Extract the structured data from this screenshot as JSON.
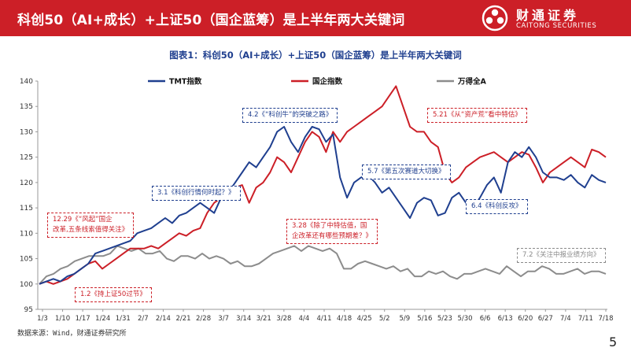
{
  "header": {
    "title": "科创50（AI+成长）+上证50（国企蓝筹）是上半年两大关键词",
    "brand_cn": "财通证券",
    "brand_en": "CAITONG SECURITIES",
    "color": "#cc1f27"
  },
  "figure_title": "图表1：科创50（AI+成长）+上证50（国企蓝筹）是上半年两大关键词",
  "source": "数据来源：Wind，财通证券研究所",
  "page_number": "5",
  "annotations": [
    {
      "text": "4.2《“科创牛”的突破之路》",
      "color": "blue"
    },
    {
      "text": "3.1《科创行情何时起？》",
      "color": "blue"
    },
    {
      "text": "5.7《第五次赛道大切换》",
      "color": "blue"
    },
    {
      "text": "6.4《科创反攻》",
      "color": "blue"
    },
    {
      "text": "12.29《“风起”国企",
      "text2": "改革,五条线索值得关注》",
      "color": "red"
    },
    {
      "text": "3.28《除了中特估值，国",
      "text2": "企改革还有哪些预期差？》",
      "color": "red"
    },
    {
      "text": "5.21《从“资产荒”看中特估》",
      "color": "red"
    },
    {
      "text": "1.2《持上证50过节》",
      "color": "red"
    },
    {
      "text": "7.2《关注中报业绩方向》",
      "color": "gray"
    }
  ],
  "chart_data": {
    "type": "line",
    "title": "图表1：科创50（AI+成长）+上证50（国企蓝筹）是上半年两大关键词",
    "y_ticks": [
      95,
      100,
      105,
      110,
      115,
      120,
      125,
      130,
      135,
      140
    ],
    "ylim": [
      95,
      140
    ],
    "x_ticks": [
      "1/3",
      "1/10",
      "1/17",
      "1/24",
      "1/31",
      "2/7",
      "2/14",
      "2/21",
      "2/28",
      "3/7",
      "3/14",
      "3/21",
      "3/28",
      "4/4",
      "4/11",
      "4/18",
      "4/25",
      "5/2",
      "5/9",
      "5/16",
      "5/23",
      "5/30",
      "6/6",
      "6/13",
      "6/20",
      "6/27",
      "7/4",
      "7/11",
      "7/18"
    ],
    "legend_position": "top",
    "grid": false,
    "series": [
      {
        "name": "TMT指数",
        "color": "#1f3f8f",
        "values": [
          100,
          100.5,
          101,
          100.5,
          101.5,
          102,
          103,
          104,
          106,
          106.5,
          107,
          107.5,
          108,
          108.5,
          110,
          110.5,
          111,
          112,
          113,
          112,
          113.5,
          114,
          115,
          116,
          115,
          114,
          117,
          118,
          120,
          122,
          124,
          123,
          125,
          127,
          130,
          131,
          128,
          126,
          129,
          131,
          130.5,
          128,
          129.5,
          121,
          117,
          120,
          121,
          121.5,
          120,
          118,
          119,
          117,
          115,
          113,
          116,
          117,
          116.5,
          113.5,
          114,
          117,
          118,
          116,
          115,
          117,
          119.5,
          121,
          118,
          124,
          126,
          125,
          127,
          125,
          122,
          121,
          121,
          120.5,
          121.5,
          120,
          119,
          121.5,
          120.5,
          120
        ]
      },
      {
        "name": "国企指数",
        "color": "#cc1f27",
        "values": [
          100,
          100.5,
          100,
          100.5,
          101,
          102,
          103,
          104,
          104.5,
          103,
          104,
          105,
          106,
          107,
          107,
          107,
          107.5,
          107,
          108,
          109,
          110,
          109.5,
          110.5,
          111,
          114,
          116,
          117,
          118,
          119,
          119.5,
          116,
          119,
          120,
          122,
          125,
          124,
          122,
          125,
          128,
          130,
          129,
          126,
          130,
          128,
          130,
          131,
          132,
          133,
          134,
          135,
          137,
          139,
          135,
          131,
          130,
          130,
          128,
          127,
          122,
          120,
          121,
          123,
          124,
          125,
          125.5,
          126,
          125,
          124,
          125,
          126,
          125.5,
          123,
          120,
          122,
          123,
          124,
          125,
          124,
          123,
          126.5,
          126,
          125
        ]
      },
      {
        "name": "万得全A",
        "color": "#8c8c8c",
        "values": [
          100,
          101.5,
          102,
          103,
          103.5,
          104.5,
          105,
          105.5,
          105.5,
          105.5,
          106,
          107.5,
          107,
          106.5,
          107,
          106,
          106,
          106.5,
          105,
          104.5,
          105.5,
          105.5,
          105,
          106,
          105,
          105.5,
          105,
          104,
          104.5,
          103.5,
          103.5,
          104,
          105,
          106,
          106.5,
          107,
          107.5,
          106.5,
          107.5,
          107,
          106.5,
          107,
          106,
          103,
          103,
          104,
          104.5,
          104,
          103.5,
          103,
          103.5,
          102.5,
          103,
          101.5,
          101.5,
          102.5,
          102,
          102.5,
          101.5,
          101,
          102,
          102,
          102.5,
          103,
          102.5,
          102,
          103.5,
          102.5,
          101.5,
          102.5,
          102.5,
          103.5,
          103,
          102,
          102,
          102.5,
          103,
          102,
          102.5,
          102.5,
          102
        ]
      }
    ]
  }
}
